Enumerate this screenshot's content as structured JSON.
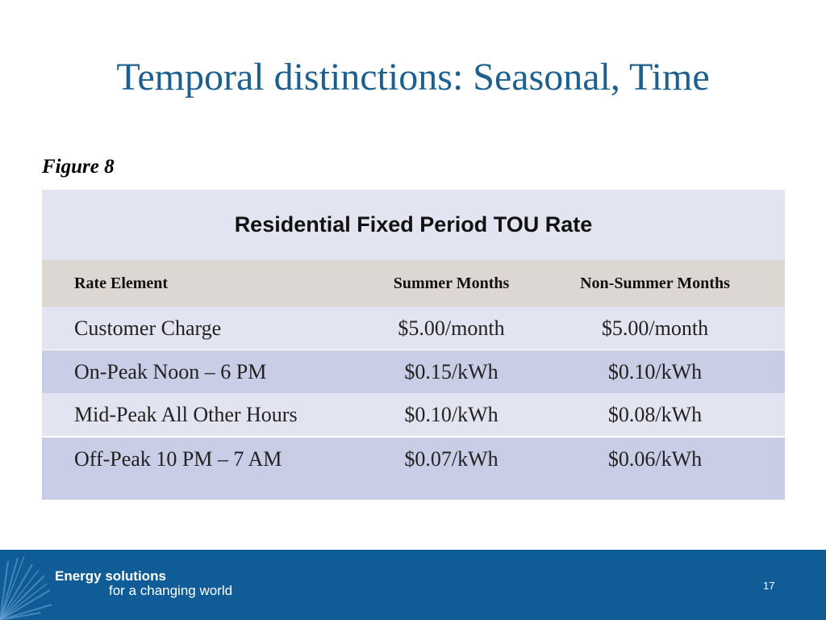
{
  "slide": {
    "title": "Temporal distinctions: Seasonal, Time",
    "figure_label": "Figure 8",
    "page_number": "17"
  },
  "table": {
    "title": "Residential Fixed Period TOU Rate",
    "columns": [
      "Rate Element",
      "Summer Months",
      "Non-Summer Months"
    ],
    "rows": [
      [
        "Customer Charge",
        "$5.00/month",
        "$5.00/month"
      ],
      [
        "On-Peak Noon – 6 PM",
        "$0.15/kWh",
        "$0.10/kWh"
      ],
      [
        "Mid-Peak All Other Hours",
        "$0.10/kWh",
        "$0.08/kWh"
      ],
      [
        "Off-Peak 10 PM – 7 AM",
        "$0.07/kWh",
        "$0.06/kWh"
      ]
    ]
  },
  "footer": {
    "tagline_line1": "Energy solutions",
    "tagline_line2": "for a changing world",
    "logo_icon": "sunburst-icon"
  },
  "colors": {
    "title": "#1d5f8e",
    "footer_bg": "#0f5c96",
    "table_light": "#e2e4f1",
    "table_dark": "#c9cde5",
    "header_bg": "#dcd7d3"
  }
}
